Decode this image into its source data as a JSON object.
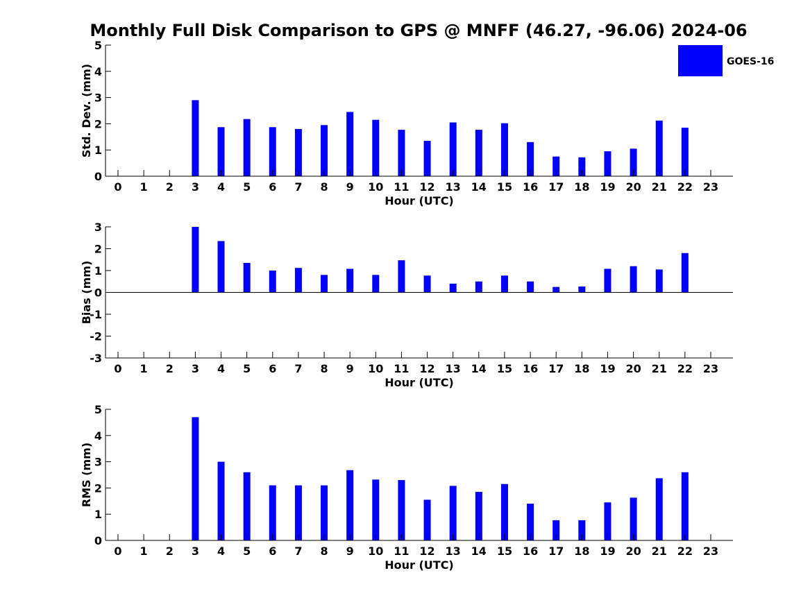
{
  "title": "Monthly Full Disk Comparison to GPS @ MNFF (46.27, -96.06) 2024-06",
  "legend": {
    "label": "GOES-16",
    "placement": "top-right"
  },
  "colors": {
    "bar": "#0000ff",
    "axis": "#000000",
    "text": "#000000"
  },
  "chart_data": [
    {
      "type": "bar",
      "name": "std-dev",
      "xlabel": "Hour (UTC)",
      "ylabel": "Std. Dev. (mm)",
      "ylim": [
        0,
        5
      ],
      "yticks": [
        "0",
        "1",
        "2",
        "3",
        "4",
        "5"
      ],
      "categories": [
        "0",
        "1",
        "2",
        "3",
        "4",
        "5",
        "6",
        "7",
        "8",
        "9",
        "10",
        "11",
        "12",
        "13",
        "14",
        "15",
        "16",
        "17",
        "18",
        "19",
        "20",
        "21",
        "22",
        "23"
      ],
      "values": [
        null,
        null,
        null,
        2.9,
        1.87,
        2.18,
        1.87,
        1.8,
        1.95,
        2.45,
        2.15,
        1.77,
        1.35,
        2.05,
        1.77,
        2.02,
        1.3,
        0.75,
        0.72,
        0.95,
        1.05,
        2.12,
        1.85,
        null
      ],
      "grid": false
    },
    {
      "type": "bar",
      "name": "bias",
      "xlabel": "Hour (UTC)",
      "ylabel": "Bias (mm)",
      "ylim": [
        -3,
        3
      ],
      "yticks": [
        "-3",
        "-2",
        "-1",
        "0",
        "1",
        "2",
        "3"
      ],
      "categories": [
        "0",
        "1",
        "2",
        "3",
        "4",
        "5",
        "6",
        "7",
        "8",
        "9",
        "10",
        "11",
        "12",
        "13",
        "14",
        "15",
        "16",
        "17",
        "18",
        "19",
        "20",
        "21",
        "22",
        "23"
      ],
      "values": [
        null,
        null,
        null,
        3.0,
        2.35,
        1.35,
        1.0,
        1.12,
        0.8,
        1.08,
        0.8,
        1.47,
        0.77,
        0.4,
        0.5,
        0.77,
        0.5,
        0.25,
        0.27,
        1.08,
        1.2,
        1.05,
        1.8,
        null
      ],
      "grid": false
    },
    {
      "type": "bar",
      "name": "rms",
      "xlabel": "Hour (UTC)",
      "ylabel": "RMS (mm)",
      "ylim": [
        0,
        5
      ],
      "yticks": [
        "0",
        "1",
        "2",
        "3",
        "4",
        "5"
      ],
      "categories": [
        "0",
        "1",
        "2",
        "3",
        "4",
        "5",
        "6",
        "7",
        "8",
        "9",
        "10",
        "11",
        "12",
        "13",
        "14",
        "15",
        "16",
        "17",
        "18",
        "19",
        "20",
        "21",
        "22",
        "23"
      ],
      "values": [
        null,
        null,
        null,
        4.7,
        3.0,
        2.6,
        2.1,
        2.1,
        2.1,
        2.68,
        2.32,
        2.3,
        1.55,
        2.08,
        1.85,
        2.15,
        1.4,
        0.77,
        0.77,
        1.45,
        1.63,
        2.37,
        2.6,
        null
      ],
      "grid": false
    }
  ]
}
